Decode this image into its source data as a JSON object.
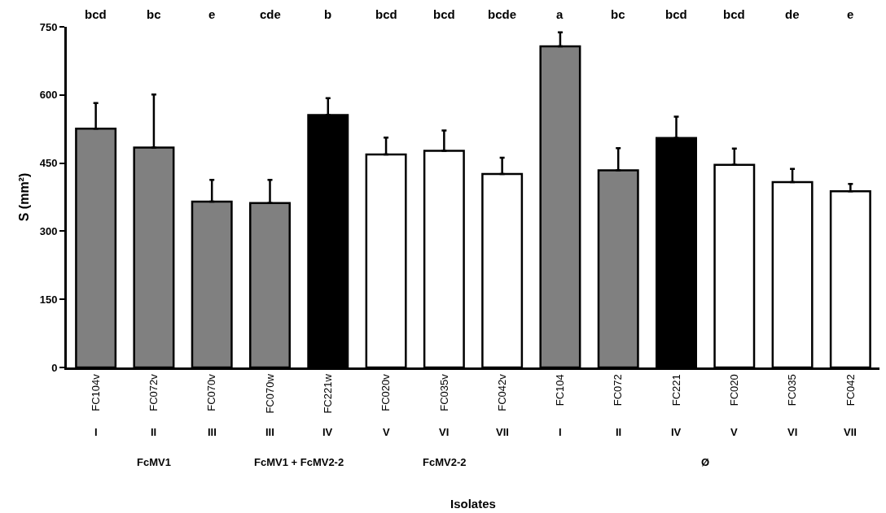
{
  "chart_data": {
    "type": "bar",
    "ylabel": "S (mm²)",
    "categories": [
      "FC104v",
      "FC072v",
      "FC070v",
      "FC070w",
      "FC221w",
      "FC020v",
      "FC035v",
      "FC042v",
      "FC104",
      "FC072",
      "FC221",
      "FC020",
      "FC035",
      "FC042"
    ],
    "values": [
      526,
      484,
      365,
      362,
      556,
      469,
      477,
      426,
      707,
      434,
      505,
      446,
      408,
      388
    ],
    "errors": [
      [
        526,
        582
      ],
      [
        484,
        601
      ],
      [
        365,
        413
      ],
      [
        362,
        413
      ],
      [
        556,
        593
      ],
      [
        469,
        506
      ],
      [
        477,
        522
      ],
      [
        426,
        462
      ],
      [
        707,
        738
      ],
      [
        434,
        483
      ],
      [
        505,
        552
      ],
      [
        446,
        482
      ],
      [
        408,
        437
      ],
      [
        388,
        404
      ]
    ],
    "colors": [
      "#808080",
      "#808080",
      "#808080",
      "#808080",
      "#000000",
      "#ffffff",
      "#ffffff",
      "#ffffff",
      "#808080",
      "#808080",
      "#000000",
      "#ffffff",
      "#ffffff",
      "#ffffff"
    ],
    "annotations": [
      "bcd",
      "bc",
      "e",
      "cde",
      "b",
      "bcd",
      "bcd",
      "bcde",
      "a",
      "bc",
      "bcd",
      "bcd",
      "de",
      "e",
      "I",
      "II",
      "III",
      "III",
      "IV",
      "V",
      "VI",
      "VII",
      "I",
      "II",
      "IV",
      "V",
      "VI",
      "VII",
      "FcMV1",
      "FcMV1 + FcMV2-2",
      "FcMV2-2",
      "Ø",
      "Isolates"
    ],
    "ylim": [
      0,
      750
    ],
    "yticks": [
      0,
      150,
      300,
      450,
      600,
      750
    ],
    "grid": false
  }
}
